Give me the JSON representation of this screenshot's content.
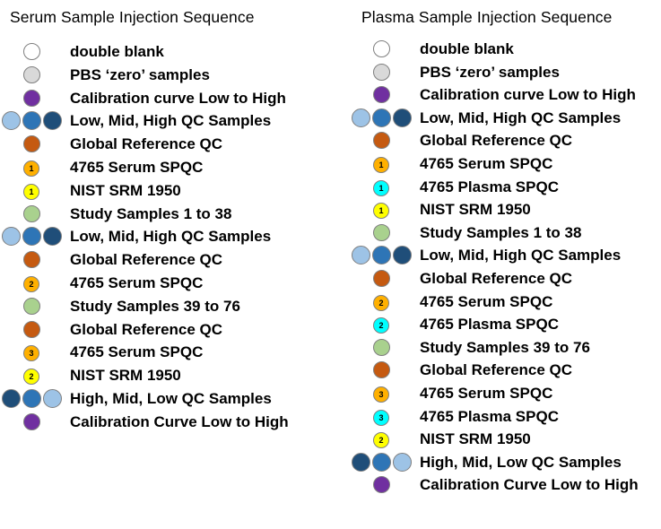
{
  "colors": {
    "white": "#ffffff",
    "grey": "#d9d9d9",
    "purple": "#7030a0",
    "light_blue": "#9dc3e6",
    "mid_blue": "#2e75b6",
    "dark_blue": "#1f4e79",
    "orange": "#c55a11",
    "gold": "#ffb000",
    "yellow": "#ffff00",
    "green": "#a9d18e",
    "cyan": "#00ffff"
  },
  "serum": {
    "title": "Serum Sample Injection Sequence",
    "items": [
      {
        "label": "double blank",
        "icons": [
          {
            "color": "white"
          }
        ]
      },
      {
        "label": "PBS ‘zero’ samples",
        "icons": [
          {
            "color": "grey"
          }
        ]
      },
      {
        "label": "Calibration curve Low to High",
        "icons": [
          {
            "color": "purple"
          }
        ]
      },
      {
        "label": "Low, Mid, High QC Samples",
        "icons": [
          {
            "color": "light_blue"
          },
          {
            "color": "mid_blue"
          },
          {
            "color": "dark_blue"
          }
        ]
      },
      {
        "label": "Global Reference  QC",
        "icons": [
          {
            "color": "orange"
          }
        ]
      },
      {
        "label": "4765 Serum SPQC",
        "icons": [
          {
            "color": "gold",
            "num": "1"
          }
        ]
      },
      {
        "label": "NIST SRM 1950",
        "icons": [
          {
            "color": "yellow",
            "num": "1"
          }
        ]
      },
      {
        "label": "Study Samples 1 to 38",
        "icons": [
          {
            "color": "green"
          }
        ]
      },
      {
        "label": "Low, Mid, High QC Samples",
        "icons": [
          {
            "color": "light_blue"
          },
          {
            "color": "mid_blue"
          },
          {
            "color": "dark_blue"
          }
        ]
      },
      {
        "label": "Global Reference  QC",
        "icons": [
          {
            "color": "orange"
          }
        ]
      },
      {
        "label": "4765 Serum SPQC",
        "icons": [
          {
            "color": "gold",
            "num": "2"
          }
        ]
      },
      {
        "label": "Study Samples 39 to 76",
        "icons": [
          {
            "color": "green"
          }
        ]
      },
      {
        "label": "Global Reference  QC",
        "icons": [
          {
            "color": "orange"
          }
        ]
      },
      {
        "label": "4765 Serum SPQC",
        "icons": [
          {
            "color": "gold",
            "num": "3"
          }
        ]
      },
      {
        "label": "NIST SRM 1950",
        "icons": [
          {
            "color": "yellow",
            "num": "2"
          }
        ]
      },
      {
        "label": "High, Mid, Low QC Samples",
        "icons": [
          {
            "color": "dark_blue"
          },
          {
            "color": "mid_blue"
          },
          {
            "color": "light_blue"
          }
        ]
      },
      {
        "label": "Calibration Curve Low to High",
        "icons": [
          {
            "color": "purple"
          }
        ]
      }
    ]
  },
  "plasma": {
    "title": "Plasma Sample Injection Sequence",
    "items": [
      {
        "label": "double blank",
        "icons": [
          {
            "color": "white"
          }
        ]
      },
      {
        "label": "PBS ‘zero’ samples",
        "icons": [
          {
            "color": "grey"
          }
        ]
      },
      {
        "label": "Calibration curve Low to High",
        "icons": [
          {
            "color": "purple"
          }
        ]
      },
      {
        "label": "Low, Mid, High QC Samples",
        "icons": [
          {
            "color": "light_blue"
          },
          {
            "color": "mid_blue"
          },
          {
            "color": "dark_blue"
          }
        ]
      },
      {
        "label": "Global Reference  QC",
        "icons": [
          {
            "color": "orange"
          }
        ]
      },
      {
        "label": "4765 Serum SPQC",
        "icons": [
          {
            "color": "gold",
            "num": "1"
          }
        ]
      },
      {
        "label": "4765 Plasma SPQC",
        "icons": [
          {
            "color": "cyan",
            "num": "1"
          }
        ]
      },
      {
        "label": "NIST SRM 1950",
        "icons": [
          {
            "color": "yellow",
            "num": "1"
          }
        ]
      },
      {
        "label": "Study Samples 1 to 38",
        "icons": [
          {
            "color": "green"
          }
        ]
      },
      {
        "label": "Low, Mid, High QC Samples",
        "icons": [
          {
            "color": "light_blue"
          },
          {
            "color": "mid_blue"
          },
          {
            "color": "dark_blue"
          }
        ]
      },
      {
        "label": "Global Reference  QC",
        "icons": [
          {
            "color": "orange"
          }
        ]
      },
      {
        "label": "4765 Serum SPQC",
        "icons": [
          {
            "color": "gold",
            "num": "2"
          }
        ]
      },
      {
        "label": "4765 Plasma SPQC",
        "icons": [
          {
            "color": "cyan",
            "num": "2"
          }
        ]
      },
      {
        "label": "Study Samples 39 to 76",
        "icons": [
          {
            "color": "green"
          }
        ]
      },
      {
        "label": "Global Reference  QC",
        "icons": [
          {
            "color": "orange"
          }
        ]
      },
      {
        "label": "4765 Serum SPQC",
        "icons": [
          {
            "color": "gold",
            "num": "3"
          }
        ]
      },
      {
        "label": "4765 Plasma SPQC",
        "icons": [
          {
            "color": "cyan",
            "num": "3"
          }
        ]
      },
      {
        "label": "NIST SRM 1950",
        "icons": [
          {
            "color": "yellow",
            "num": "2"
          }
        ]
      },
      {
        "label": "High, Mid, Low QC Samples",
        "icons": [
          {
            "color": "dark_blue"
          },
          {
            "color": "mid_blue"
          },
          {
            "color": "light_blue"
          }
        ]
      },
      {
        "label": "Calibration Curve Low to High",
        "icons": [
          {
            "color": "purple"
          }
        ]
      }
    ]
  }
}
